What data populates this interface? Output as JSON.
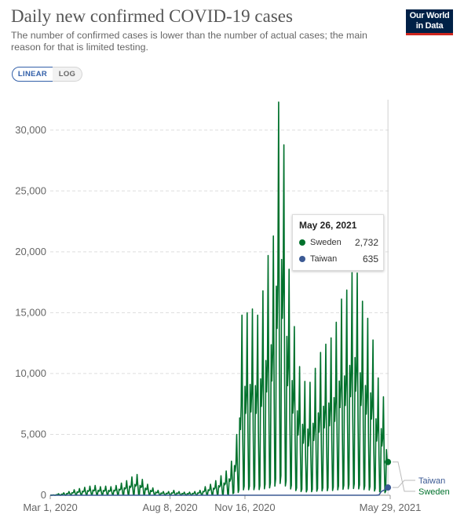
{
  "header": {
    "title": "Daily new confirmed COVID-19 cases",
    "subtitle": "The number of confirmed cases is lower than the number of actual cases; the main reason for that is limited testing.",
    "logo_line1": "Our World",
    "logo_line2": "in Data"
  },
  "controls": {
    "linear_label": "LINEAR",
    "log_label": "LOG",
    "selected": "LINEAR"
  },
  "tooltip": {
    "date": "May 26, 2021",
    "rows": [
      {
        "name": "Sweden",
        "value": "2,732",
        "color": "#00712c"
      },
      {
        "name": "Taiwan",
        "value": "635",
        "color": "#3c5a94"
      }
    ]
  },
  "chart_data": {
    "type": "line",
    "title": "Daily new confirmed COVID-19 cases",
    "xlabel": "",
    "ylabel": "",
    "ylim": [
      0,
      32500
    ],
    "yticks": [
      0,
      5000,
      10000,
      15000,
      20000,
      25000,
      30000
    ],
    "ytick_labels": [
      "0",
      "5,000",
      "10,000",
      "15,000",
      "20,000",
      "25,000",
      "30,000"
    ],
    "xticks": [
      "2020-03-01",
      "2020-08-08",
      "2020-11-16",
      "2021-05-29"
    ],
    "xtick_labels": [
      "Mar 1, 2020",
      "Aug 8, 2020",
      "Nov 16, 2020",
      "May 29, 2021"
    ],
    "xlim": [
      "2020-03-01",
      "2021-05-29"
    ],
    "grid": true,
    "legend": "right end labels",
    "hover_date": "2021-05-26",
    "series": [
      {
        "name": "Sweden",
        "color": "#00712c",
        "end_label": "Sweden",
        "end_value": 2732,
        "weekly_peaks": [
          [
            "2020-03-05",
            20
          ],
          [
            "2020-03-12",
            120
          ],
          [
            "2020-03-19",
            200
          ],
          [
            "2020-03-26",
            300
          ],
          [
            "2020-04-02",
            450
          ],
          [
            "2020-04-09",
            550
          ],
          [
            "2020-04-16",
            650
          ],
          [
            "2020-04-23",
            750
          ],
          [
            "2020-04-30",
            800
          ],
          [
            "2020-05-07",
            700
          ],
          [
            "2020-05-14",
            750
          ],
          [
            "2020-05-21",
            700
          ],
          [
            "2020-05-28",
            800
          ],
          [
            "2020-06-04",
            1000
          ],
          [
            "2020-06-11",
            1200
          ],
          [
            "2020-06-18",
            1500
          ],
          [
            "2020-06-25",
            1700
          ],
          [
            "2020-07-02",
            1300
          ],
          [
            "2020-07-09",
            900
          ],
          [
            "2020-07-16",
            600
          ],
          [
            "2020-07-23",
            400
          ],
          [
            "2020-07-30",
            300
          ],
          [
            "2020-08-06",
            300
          ],
          [
            "2020-08-13",
            400
          ],
          [
            "2020-08-20",
            300
          ],
          [
            "2020-08-27",
            250
          ],
          [
            "2020-09-03",
            250
          ],
          [
            "2020-09-10",
            300
          ],
          [
            "2020-09-17",
            400
          ],
          [
            "2020-09-24",
            700
          ],
          [
            "2020-10-01",
            900
          ],
          [
            "2020-10-08",
            1200
          ],
          [
            "2020-10-15",
            1600
          ],
          [
            "2020-10-22",
            2000
          ],
          [
            "2020-10-29",
            2800
          ],
          [
            "2020-11-05",
            5000
          ],
          [
            "2020-11-12",
            14800
          ],
          [
            "2020-11-19",
            15000
          ],
          [
            "2020-11-26",
            15300
          ],
          [
            "2020-12-03",
            14800
          ],
          [
            "2020-12-10",
            16800
          ],
          [
            "2020-12-17",
            19700
          ],
          [
            "2020-12-24",
            21300
          ],
          [
            "2020-12-30",
            32300
          ],
          [
            "2021-01-05",
            32300
          ],
          [
            "2021-01-12",
            20000
          ],
          [
            "2021-01-19",
            15000
          ],
          [
            "2021-01-26",
            11000
          ],
          [
            "2021-02-02",
            9500
          ],
          [
            "2021-02-09",
            9000
          ],
          [
            "2021-02-16",
            10000
          ],
          [
            "2021-02-23",
            11500
          ],
          [
            "2021-03-02",
            12300
          ],
          [
            "2021-03-09",
            12700
          ],
          [
            "2021-03-16",
            13500
          ],
          [
            "2021-03-23",
            16000
          ],
          [
            "2021-03-30",
            16400
          ],
          [
            "2021-04-06",
            18000
          ],
          [
            "2021-04-13",
            19000
          ],
          [
            "2021-04-20",
            16400
          ],
          [
            "2021-04-27",
            14800
          ],
          [
            "2021-05-04",
            13900
          ],
          [
            "2021-05-11",
            9900
          ],
          [
            "2021-05-18",
            9000
          ],
          [
            "2021-05-25",
            5800
          ]
        ]
      },
      {
        "name": "Taiwan",
        "color": "#3c5a94",
        "end_label": "Taiwan",
        "end_value": 635,
        "points": [
          [
            "2020-03-01",
            0
          ],
          [
            "2021-05-10",
            0
          ],
          [
            "2021-05-14",
            20
          ],
          [
            "2021-05-17",
            300
          ],
          [
            "2021-05-22",
            450
          ],
          [
            "2021-05-26",
            635
          ],
          [
            "2021-05-29",
            635
          ]
        ]
      }
    ]
  }
}
